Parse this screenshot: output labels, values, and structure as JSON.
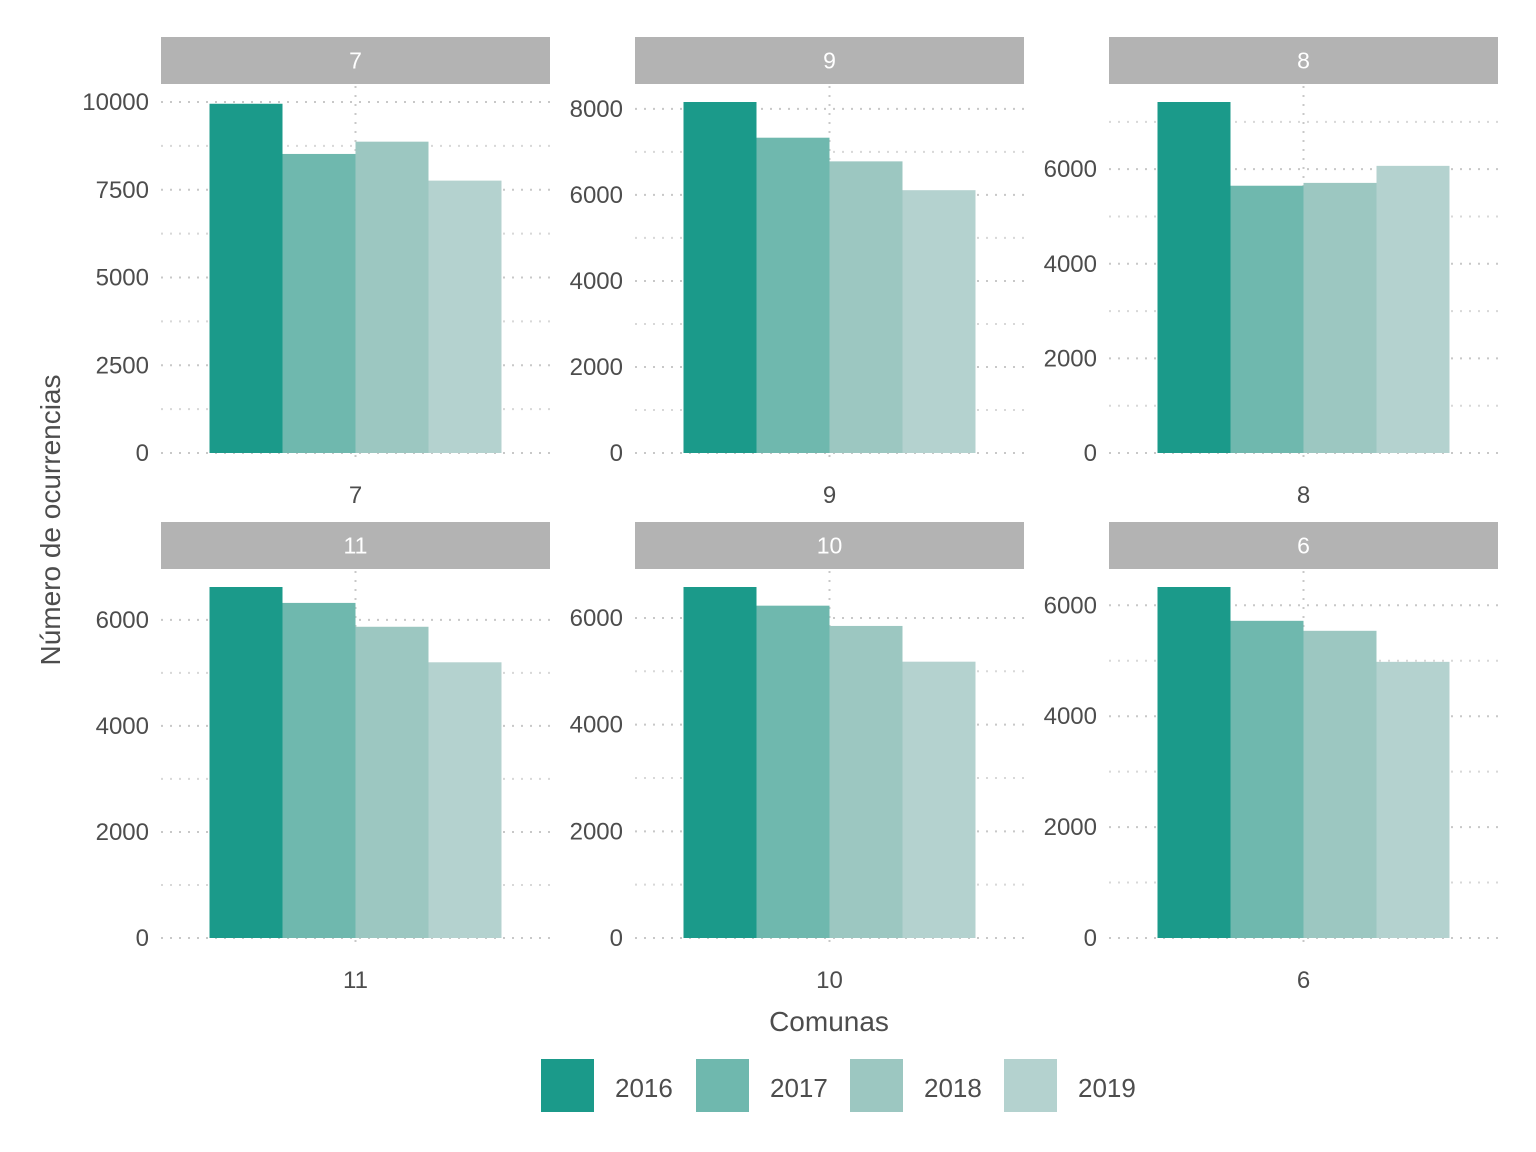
{
  "chart_data": {
    "type": "bar",
    "xlabel": "Comunas",
    "ylabel": "Número de ocurrencias",
    "legend_position": "bottom",
    "grid": true,
    "series_names": [
      "2016",
      "2017",
      "2018",
      "2019"
    ],
    "colors": [
      "#1b9a8a",
      "#6fb8ae",
      "#9cc7c1",
      "#b4d2cf"
    ],
    "facets": [
      {
        "label": "7",
        "category": "7",
        "ylim": [
          0,
          10000
        ],
        "yticks": [
          0,
          2500,
          5000,
          7500,
          10000
        ],
        "values": [
          9950,
          8520,
          8870,
          7760
        ]
      },
      {
        "label": "9",
        "category": "9",
        "ylim": [
          0,
          8160
        ],
        "yticks": [
          0,
          2000,
          4000,
          6000,
          8000
        ],
        "values": [
          8160,
          7330,
          6780,
          6110
        ]
      },
      {
        "label": "8",
        "category": "8",
        "ylim": [
          0,
          7420
        ],
        "yticks": [
          0,
          2000,
          4000,
          6000
        ],
        "values": [
          7420,
          5650,
          5710,
          6070
        ]
      },
      {
        "label": "11",
        "category": "11",
        "ylim": [
          0,
          6620
        ],
        "yticks": [
          0,
          2000,
          4000,
          6000
        ],
        "values": [
          6620,
          6320,
          5870,
          5200
        ]
      },
      {
        "label": "10",
        "category": "10",
        "ylim": [
          0,
          6580
        ],
        "yticks": [
          0,
          2000,
          4000,
          6000
        ],
        "values": [
          6580,
          6230,
          5850,
          5180
        ]
      },
      {
        "label": "6",
        "category": "6",
        "ylim": [
          0,
          6330
        ],
        "yticks": [
          0,
          2000,
          4000,
          6000
        ],
        "values": [
          6330,
          5720,
          5540,
          4980
        ]
      }
    ]
  }
}
